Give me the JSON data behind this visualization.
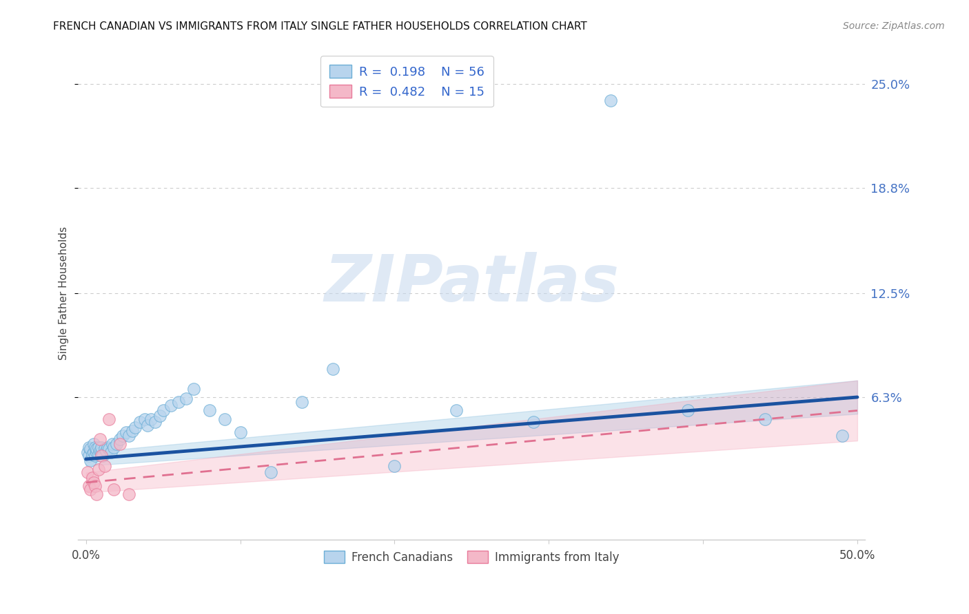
{
  "title": "FRENCH CANADIAN VS IMMIGRANTS FROM ITALY SINGLE FATHER HOUSEHOLDS CORRELATION CHART",
  "source": "Source: ZipAtlas.com",
  "ylabel": "Single Father Households",
  "xlim": [
    -0.005,
    0.505
  ],
  "ylim": [
    -0.022,
    0.272
  ],
  "ytick_positions": [
    0.063,
    0.125,
    0.188,
    0.25
  ],
  "ytick_labels": [
    "6.3%",
    "12.5%",
    "18.8%",
    "25.0%"
  ],
  "xtick_positions": [
    0.0,
    0.1,
    0.2,
    0.3,
    0.4,
    0.5
  ],
  "xtick_labels": [
    "0.0%",
    "",
    "",
    "",
    "",
    "50.0%"
  ],
  "blue_face": "#b8d4ed",
  "blue_edge": "#6baed6",
  "pink_face": "#f4b8c8",
  "pink_edge": "#e87a9a",
  "line_blue_color": "#1a52a0",
  "line_pink_color": "#e07090",
  "band_blue_color": "#6baed6",
  "band_pink_color": "#f4a0b5",
  "fc_x": [
    0.001,
    0.002,
    0.002,
    0.003,
    0.003,
    0.004,
    0.005,
    0.005,
    0.006,
    0.006,
    0.007,
    0.007,
    0.008,
    0.008,
    0.009,
    0.01,
    0.01,
    0.011,
    0.012,
    0.013,
    0.014,
    0.015,
    0.016,
    0.017,
    0.018,
    0.02,
    0.022,
    0.024,
    0.026,
    0.028,
    0.03,
    0.032,
    0.035,
    0.038,
    0.04,
    0.042,
    0.045,
    0.048,
    0.05,
    0.055,
    0.06,
    0.065,
    0.07,
    0.08,
    0.09,
    0.1,
    0.12,
    0.14,
    0.16,
    0.2,
    0.24,
    0.29,
    0.34,
    0.39,
    0.44,
    0.49
  ],
  "fc_y": [
    0.03,
    0.028,
    0.033,
    0.025,
    0.032,
    0.029,
    0.03,
    0.035,
    0.028,
    0.033,
    0.03,
    0.032,
    0.029,
    0.033,
    0.031,
    0.03,
    0.033,
    0.028,
    0.032,
    0.031,
    0.033,
    0.032,
    0.03,
    0.035,
    0.033,
    0.035,
    0.038,
    0.04,
    0.042,
    0.04,
    0.043,
    0.045,
    0.048,
    0.05,
    0.046,
    0.05,
    0.048,
    0.052,
    0.055,
    0.058,
    0.06,
    0.062,
    0.068,
    0.055,
    0.05,
    0.042,
    0.018,
    0.06,
    0.08,
    0.022,
    0.055,
    0.048,
    0.24,
    0.055,
    0.05,
    0.04
  ],
  "it_x": [
    0.001,
    0.002,
    0.003,
    0.004,
    0.005,
    0.006,
    0.007,
    0.008,
    0.009,
    0.01,
    0.012,
    0.015,
    0.018,
    0.022,
    0.028
  ],
  "it_y": [
    0.018,
    0.01,
    0.008,
    0.015,
    0.012,
    0.01,
    0.005,
    0.02,
    0.038,
    0.028,
    0.022,
    0.05,
    0.008,
    0.035,
    0.005
  ],
  "fc_line_x": [
    0.0,
    0.5
  ],
  "fc_line_y_start": 0.026,
  "fc_line_y_end": 0.063,
  "it_line_x": [
    0.0,
    0.5
  ],
  "it_line_y_start": 0.012,
  "it_line_y_end": 0.055,
  "watermark_text": "ZIPatlas",
  "watermark_color": "#c5d8ee",
  "title_fontsize": 11,
  "source_fontsize": 10,
  "tick_fontsize": 12,
  "ytick_fontsize": 13,
  "scatter_size": 160,
  "scatter_alpha": 0.75
}
